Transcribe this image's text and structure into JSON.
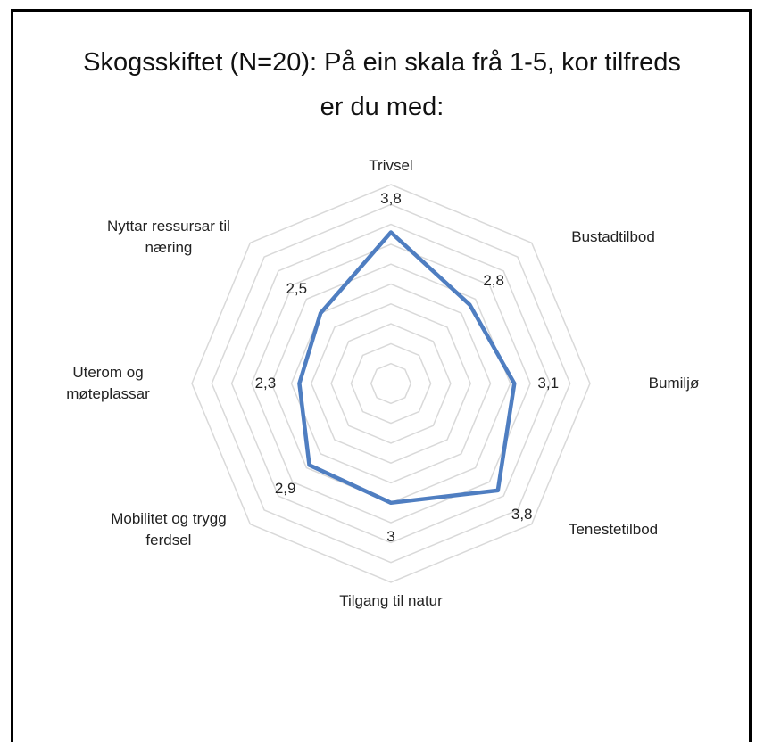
{
  "chart_data": {
    "type": "radar",
    "title": "Skogsskiftet (N=20): På ein skala frå 1-5, kor tilfreds er du med:",
    "categories": [
      "Trivsel",
      "Bustadtilbod",
      "Bumiljø",
      "Tenestetilbod",
      "Tilgang til natur",
      "Mobilitet og trygg ferdsel",
      "Uterom og møteplassar",
      "Nyttar ressursar til næring"
    ],
    "values": [
      3.8,
      2.8,
      3.1,
      3.8,
      3,
      2.9,
      2.3,
      2.5
    ],
    "value_labels": [
      "3,8",
      "2,8",
      "3,1",
      "3,8",
      "3",
      "2,9",
      "2,3",
      "2,5"
    ],
    "color": "#4f7ec1",
    "ylim": [
      0,
      5
    ],
    "yticks": [
      0.5,
      1,
      1.5,
      2,
      2.5,
      3,
      3.5,
      4,
      4.5,
      5
    ],
    "grid": true
  }
}
